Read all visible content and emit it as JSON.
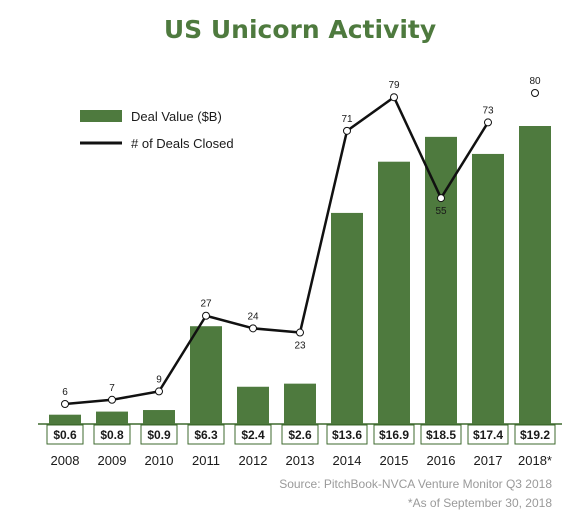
{
  "chart_data": {
    "type": "bar",
    "title": "US Unicorn Activity",
    "categories": [
      "2008",
      "2009",
      "2010",
      "2011",
      "2012",
      "2013",
      "2014",
      "2015",
      "2016",
      "2017",
      "2018*"
    ],
    "series": [
      {
        "name": "Deal Value ($B)",
        "type": "bar",
        "values": [
          0.6,
          0.8,
          0.9,
          6.3,
          2.4,
          2.6,
          13.6,
          16.9,
          18.5,
          17.4,
          19.2
        ],
        "labels": [
          "$0.6",
          "$0.8",
          "$0.9",
          "$6.3",
          "$2.4",
          "$2.6",
          "$13.6",
          "$16.9",
          "$18.5",
          "$17.4",
          "$19.2"
        ],
        "color": "#4e7a3e"
      },
      {
        "name": "# of Deals Closed",
        "type": "line",
        "values": [
          6,
          7,
          9,
          27,
          24,
          23,
          71,
          79,
          55,
          73,
          80
        ],
        "labels": [
          "6",
          "7",
          "9",
          "27",
          "24",
          "23",
          "71",
          "79",
          "55",
          "73",
          "80"
        ],
        "color": "#111111",
        "connected_through_index": 9
      }
    ],
    "legend": "top-left",
    "grid": false,
    "source_lines": [
      "Source: PitchBook-NVCA Venture Monitor Q3 2018",
      "*As of September 30, 2018"
    ]
  }
}
